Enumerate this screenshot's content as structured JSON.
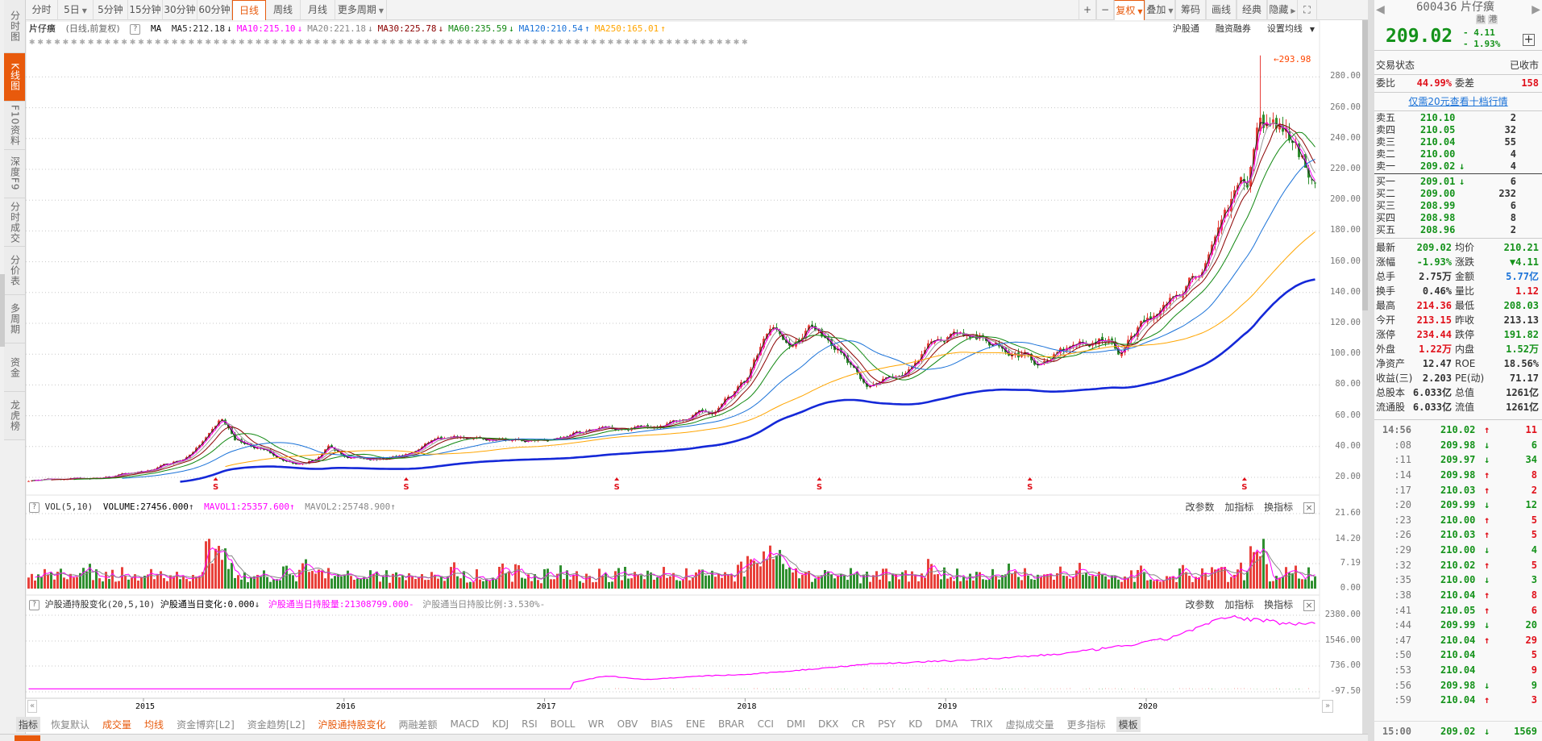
{
  "sidebar": {
    "items": [
      "分时图",
      "K线图",
      "F10资料",
      "深度F9",
      "分时成交",
      "分价表",
      "多周期",
      "资金",
      "龙虎榜"
    ],
    "active": 1
  },
  "toolbar": {
    "periods": [
      "分时",
      "5日",
      "5分钟",
      "15分钟",
      "30分钟",
      "60分钟",
      "日线",
      "周线",
      "月线",
      "更多周期"
    ],
    "active_period": "日线",
    "right_buttons": [
      "+",
      "−",
      "复权",
      "叠加",
      "筹码",
      "画线",
      "经典",
      "隐藏"
    ],
    "fullscreen_icon": "fullscreen-icon"
  },
  "chart_title": {
    "name": "片仔癀",
    "mode": "(日线,前复权)",
    "help": "?",
    "ma": "MA",
    "ma_values": [
      {
        "label": "MA5:212.18",
        "arrow": "↓",
        "color": "#222222"
      },
      {
        "label": "MA10:215.10",
        "arrow": "↓",
        "color": "#ff00ff"
      },
      {
        "label": "MA20:221.18",
        "arrow": "↓",
        "color": "#888888"
      },
      {
        "label": "MA30:225.78",
        "arrow": "↓",
        "color": "#8b0000"
      },
      {
        "label": "MA60:235.59",
        "arrow": "↓",
        "color": "#118811"
      },
      {
        "label": "MA120:210.54",
        "arrow": "↑",
        "color": "#1a72d8"
      },
      {
        "label": "MA250:165.01",
        "arrow": "↑",
        "color": "#ffa500"
      }
    ],
    "links": [
      "沪股通",
      "融资融券",
      "设置均线"
    ]
  },
  "price_axis": [
    "280.00",
    "260.00",
    "240.00",
    "220.00",
    "200.00",
    "180.00",
    "160.00",
    "140.00",
    "120.00",
    "100.00",
    "80.00",
    "60.00",
    "40.00",
    "20.00"
  ],
  "peak_label": "293.98",
  "marker_label": "S",
  "volume_panel": {
    "help": "?",
    "name": "VOL(5,10)",
    "volume": "VOLUME:27456.000",
    "volume_arrow": "↑",
    "mavol1": "MAVOL1:25357.600",
    "mavol1_arrow": "↑",
    "mavol2": "MAVOL2:25748.900",
    "mavol2_arrow": "↑",
    "tools": [
      "改参数",
      "加指标",
      "换指标"
    ],
    "close": "×",
    "axis": [
      "21.60",
      "14.20",
      "7.19",
      "0.00"
    ]
  },
  "hsgt_panel": {
    "help": "?",
    "name": "沪股通持股变化(20,5,10)",
    "daily_change": "沪股通当日变化:0.000",
    "daily_arrow": "↓",
    "holding": "沪股通当日持股量:21308799.000",
    "holding_dash": "-",
    "ratio": "沪股通当日持股比例:3.530%",
    "ratio_dash": "-",
    "tools": [
      "改参数",
      "加指标",
      "换指标"
    ],
    "close": "×",
    "axis": [
      "2380.00",
      "1546.00",
      "736.00",
      "-97.50"
    ]
  },
  "years": [
    "2015",
    "2016",
    "2017",
    "2018",
    "2019",
    "2020"
  ],
  "indicator_tabs": [
    {
      "label": "指标",
      "style": "gray"
    },
    {
      "label": "恢复默认",
      "style": ""
    },
    {
      "label": "成交量",
      "style": "orange"
    },
    {
      "label": "均线",
      "style": "orange"
    },
    {
      "label": "资金博弈[L2]",
      "style": ""
    },
    {
      "label": "资金趋势[L2]",
      "style": ""
    },
    {
      "label": "沪股通持股变化",
      "style": "orange"
    },
    {
      "label": "两融差额",
      "style": ""
    },
    {
      "label": "MACD",
      "style": ""
    },
    {
      "label": "KDJ",
      "style": ""
    },
    {
      "label": "RSI",
      "style": ""
    },
    {
      "label": "BOLL",
      "style": ""
    },
    {
      "label": "WR",
      "style": ""
    },
    {
      "label": "OBV",
      "style": ""
    },
    {
      "label": "BIAS",
      "style": ""
    },
    {
      "label": "ENE",
      "style": ""
    },
    {
      "label": "BRAR",
      "style": ""
    },
    {
      "label": "CCI",
      "style": ""
    },
    {
      "label": "DMI",
      "style": ""
    },
    {
      "label": "DKX",
      "style": ""
    },
    {
      "label": "CR",
      "style": ""
    },
    {
      "label": "PSY",
      "style": ""
    },
    {
      "label": "KD",
      "style": ""
    },
    {
      "label": "DMA",
      "style": ""
    },
    {
      "label": "TRIX",
      "style": ""
    },
    {
      "label": "虚拟成交量",
      "style": ""
    },
    {
      "label": "更多指标",
      "style": ""
    },
    {
      "label": "模板",
      "style": "gray"
    }
  ],
  "quote": {
    "code": "600436",
    "name": "片仔癀",
    "badges": [
      "融",
      "港"
    ],
    "price": "209.02",
    "change": "- 4.11",
    "change_pct": "- 1.93%",
    "status_label": "交易状态",
    "status": "已收市",
    "wb_label": "委比",
    "wb": "44.99%",
    "wc_label": "委差",
    "wc": "158",
    "promo": "仅需20元查看十档行情",
    "asks": [
      [
        "卖五",
        "210.10",
        "",
        "2"
      ],
      [
        "卖四",
        "210.05",
        "",
        "32"
      ],
      [
        "卖三",
        "210.04",
        "",
        "55"
      ],
      [
        "卖二",
        "210.00",
        "",
        "4"
      ],
      [
        "卖一",
        "209.02",
        "↓",
        "4"
      ]
    ],
    "bids": [
      [
        "买一",
        "209.01",
        "↓",
        "6"
      ],
      [
        "买二",
        "209.00",
        "",
        "232"
      ],
      [
        "买三",
        "208.99",
        "",
        "6"
      ],
      [
        "买四",
        "208.98",
        "",
        "8"
      ],
      [
        "买五",
        "208.96",
        "",
        "2"
      ]
    ],
    "stats": [
      [
        "最新",
        "209.02",
        "g",
        "均价",
        "210.21",
        "g"
      ],
      [
        "涨幅",
        "-1.93%",
        "g",
        "涨跌",
        "▼4.11",
        "g"
      ],
      [
        "总手",
        "2.75万",
        "k",
        "金额",
        "5.77亿",
        "b"
      ],
      [
        "换手",
        "0.46%",
        "k",
        "量比",
        "1.12",
        "r"
      ],
      [
        "最高",
        "214.36",
        "r",
        "最低",
        "208.03",
        "g"
      ],
      [
        "今开",
        "213.15",
        "r",
        "昨收",
        "213.13",
        "k"
      ],
      [
        "涨停",
        "234.44",
        "r",
        "跌停",
        "191.82",
        "g"
      ],
      [
        "外盘",
        "1.22万",
        "r",
        "内盘",
        "1.52万",
        "g"
      ],
      [
        "净资产",
        "12.47",
        "k",
        "ROE",
        "18.56%",
        "k"
      ],
      [
        "收益(三)",
        "2.203",
        "k",
        "PE(动)",
        "71.17",
        "k"
      ],
      [
        "总股本",
        "6.033亿",
        "k",
        "总值",
        "1261亿",
        "k"
      ],
      [
        "流通股",
        "6.033亿",
        "k",
        "流值",
        "1261亿",
        "k"
      ]
    ],
    "ticks": [
      [
        "14:56",
        "210.02",
        "↑",
        "11"
      ],
      [
        ":08",
        "209.98",
        "↓",
        "6"
      ],
      [
        ":11",
        "209.97",
        "↓",
        "34"
      ],
      [
        ":14",
        "209.98",
        "↑",
        "8"
      ],
      [
        ":17",
        "210.03",
        "↑",
        "2"
      ],
      [
        ":20",
        "209.99",
        "↓",
        "12"
      ],
      [
        ":23",
        "210.00",
        "↑",
        "5"
      ],
      [
        ":26",
        "210.03",
        "↑",
        "5"
      ],
      [
        ":29",
        "210.00",
        "↓",
        "4"
      ],
      [
        ":32",
        "210.02",
        "↑",
        "5"
      ],
      [
        ":35",
        "210.00",
        "↓",
        "3"
      ],
      [
        ":38",
        "210.04",
        "↑",
        "8"
      ],
      [
        ":41",
        "210.05",
        "↑",
        "6"
      ],
      [
        ":44",
        "209.99",
        "↓",
        "20"
      ],
      [
        ":47",
        "210.04",
        "↑",
        "29"
      ],
      [
        ":50",
        "210.04",
        "",
        "5"
      ],
      [
        ":53",
        "210.04",
        "",
        "9"
      ],
      [
        ":56",
        "209.98",
        "↓",
        "9"
      ],
      [
        ":59",
        "210.04",
        "↑",
        "3"
      ],
      [
        "15:00",
        "209.02",
        "↓",
        "1569"
      ]
    ]
  },
  "colors": {
    "up": "#e8403a",
    "down": "#2f8f2f",
    "accent": "#e85a0c",
    "green": "#14921a",
    "red": "#e0101a",
    "pink": "#ff00ff",
    "blue_thick": "#1428d8"
  },
  "chart_data": {
    "type": "candlestick",
    "x_range": [
      2014.41,
      2020.86
    ],
    "ylim": [
      20,
      294
    ],
    "price_anchors": [
      [
        2014.42,
        18
      ],
      [
        2014.8,
        20
      ],
      [
        2015.0,
        24
      ],
      [
        2015.2,
        32
      ],
      [
        2015.33,
        48
      ],
      [
        2015.38,
        58
      ],
      [
        2015.45,
        45
      ],
      [
        2015.55,
        40
      ],
      [
        2015.65,
        34
      ],
      [
        2015.75,
        29
      ],
      [
        2015.85,
        32
      ],
      [
        2015.92,
        40
      ],
      [
        2016.0,
        33
      ],
      [
        2016.2,
        32
      ],
      [
        2016.35,
        37
      ],
      [
        2016.45,
        45
      ],
      [
        2016.6,
        45
      ],
      [
        2016.9,
        43
      ],
      [
        2017.1,
        47
      ],
      [
        2017.3,
        52
      ],
      [
        2017.5,
        53
      ],
      [
        2017.7,
        58
      ],
      [
        2017.85,
        64
      ],
      [
        2018.0,
        82
      ],
      [
        2018.1,
        110
      ],
      [
        2018.15,
        118
      ],
      [
        2018.22,
        102
      ],
      [
        2018.33,
        120
      ],
      [
        2018.45,
        105
      ],
      [
        2018.55,
        86
      ],
      [
        2018.62,
        78
      ],
      [
        2018.75,
        86
      ],
      [
        2018.85,
        92
      ],
      [
        2018.95,
        110
      ],
      [
        2019.05,
        115
      ],
      [
        2019.2,
        108
      ],
      [
        2019.3,
        105
      ],
      [
        2019.45,
        95
      ],
      [
        2019.55,
        100
      ],
      [
        2019.7,
        106
      ],
      [
        2019.8,
        110
      ],
      [
        2019.87,
        101
      ],
      [
        2019.95,
        116
      ],
      [
        2020.05,
        126
      ],
      [
        2020.15,
        140
      ],
      [
        2020.25,
        152
      ],
      [
        2020.35,
        172
      ],
      [
        2020.42,
        200
      ],
      [
        2020.5,
        212
      ],
      [
        2020.55,
        262
      ],
      [
        2020.6,
        250
      ],
      [
        2020.67,
        246
      ],
      [
        2020.74,
        230
      ],
      [
        2020.86,
        209
      ]
    ],
    "peak_high": 293.98,
    "hsgt_anchors": [
      [
        2017.13,
        200
      ],
      [
        2017.3,
        420
      ],
      [
        2017.5,
        300
      ],
      [
        2017.8,
        420
      ],
      [
        2018.0,
        460
      ],
      [
        2018.3,
        620
      ],
      [
        2018.6,
        800
      ],
      [
        2019.0,
        900
      ],
      [
        2019.3,
        1000
      ],
      [
        2019.6,
        1150
      ],
      [
        2019.9,
        1400
      ],
      [
        2020.1,
        1620
      ],
      [
        2020.3,
        2100
      ],
      [
        2020.4,
        2320
      ],
      [
        2020.6,
        2200
      ],
      [
        2020.7,
        2100
      ],
      [
        2020.86,
        2160
      ]
    ],
    "hsgt_ylim": [
      -97.5,
      2380
    ],
    "volume_ylim": [
      0,
      21.6
    ]
  }
}
